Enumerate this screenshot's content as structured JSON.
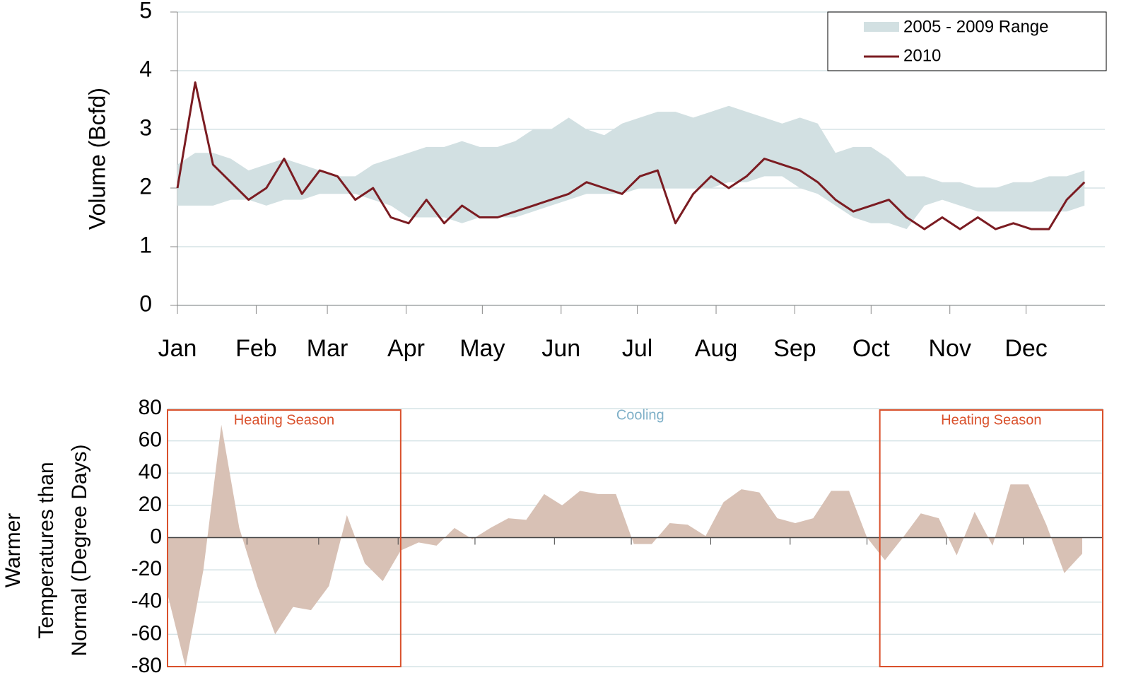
{
  "chart_data": [
    {
      "type": "range-line",
      "ylabel": "Volume (Bcfd)",
      "x": [
        1,
        8,
        15,
        22,
        29,
        36,
        43,
        50,
        57,
        64,
        71,
        78,
        85,
        92,
        99,
        106,
        113,
        120,
        127,
        134,
        141,
        148,
        155,
        162,
        169,
        176,
        183,
        190,
        197,
        204,
        211,
        218,
        225,
        232,
        239,
        246,
        253,
        260,
        267,
        274,
        281,
        288,
        295,
        302,
        309,
        316,
        323,
        330,
        337,
        344,
        351,
        358
      ],
      "xlim": [
        1,
        366
      ],
      "xticks": [
        {
          "value": 1,
          "label": "Jan"
        },
        {
          "value": 32,
          "label": "Feb"
        },
        {
          "value": 60,
          "label": "Mar"
        },
        {
          "value": 91,
          "label": "Apr"
        },
        {
          "value": 121,
          "label": "May"
        },
        {
          "value": 152,
          "label": "Jun"
        },
        {
          "value": 182,
          "label": "Jul"
        },
        {
          "value": 213,
          "label": "Aug"
        },
        {
          "value": 244,
          "label": "Sep"
        },
        {
          "value": 274,
          "label": "Oct"
        },
        {
          "value": 305,
          "label": "Nov"
        },
        {
          "value": 335,
          "label": "Dec"
        }
      ],
      "ylim": [
        0,
        5
      ],
      "yticks": [
        0,
        1,
        2,
        3,
        4,
        5
      ],
      "grid": true,
      "legend": "upper right",
      "series": [
        {
          "name": "2005 - 2009 Range",
          "color": "#d2e0e2",
          "low": [
            1.7,
            1.7,
            1.7,
            1.8,
            1.8,
            1.7,
            1.8,
            1.8,
            1.9,
            1.9,
            1.9,
            1.8,
            1.7,
            1.5,
            1.5,
            1.5,
            1.4,
            1.5,
            1.5,
            1.5,
            1.6,
            1.7,
            1.8,
            1.9,
            1.9,
            1.9,
            2.0,
            2.0,
            2.0,
            2.0,
            2.0,
            2.1,
            2.1,
            2.2,
            2.2,
            2.0,
            1.9,
            1.7,
            1.5,
            1.4,
            1.4,
            1.3,
            1.7,
            1.8,
            1.7,
            1.6,
            1.6,
            1.6,
            1.6,
            1.6,
            1.6,
            1.7
          ],
          "high": [
            2.4,
            2.6,
            2.6,
            2.5,
            2.3,
            2.4,
            2.5,
            2.4,
            2.3,
            2.2,
            2.2,
            2.4,
            2.5,
            2.6,
            2.7,
            2.7,
            2.8,
            2.7,
            2.7,
            2.8,
            3.0,
            3.0,
            3.2,
            3.0,
            2.9,
            3.1,
            3.2,
            3.3,
            3.3,
            3.2,
            3.3,
            3.4,
            3.3,
            3.2,
            3.1,
            3.2,
            3.1,
            2.6,
            2.7,
            2.7,
            2.5,
            2.2,
            2.2,
            2.1,
            2.1,
            2.0,
            2.0,
            2.1,
            2.1,
            2.2,
            2.2,
            2.3
          ]
        },
        {
          "name": "2010",
          "color": "#7b1c22",
          "values": [
            2.0,
            3.8,
            2.4,
            2.1,
            1.8,
            2.0,
            2.5,
            1.9,
            2.3,
            2.2,
            1.8,
            2.0,
            1.5,
            1.4,
            1.8,
            1.4,
            1.7,
            1.5,
            1.5,
            1.6,
            1.7,
            1.8,
            1.9,
            2.1,
            2.0,
            1.9,
            2.2,
            2.3,
            1.4,
            1.9,
            2.2,
            2.0,
            2.2,
            2.5,
            2.4,
            2.3,
            2.1,
            1.8,
            1.6,
            1.7,
            1.8,
            1.5,
            1.3,
            1.5,
            1.3,
            1.5,
            1.3,
            1.4,
            1.3,
            1.3,
            1.8,
            2.1
          ]
        }
      ]
    },
    {
      "type": "area",
      "ylabel": [
        "Warmer",
        "Temperatures than",
        "Normal (Degree Days)"
      ],
      "x": [
        1,
        8,
        15,
        22,
        29,
        36,
        43,
        50,
        57,
        64,
        71,
        78,
        85,
        92,
        99,
        106,
        113,
        120,
        127,
        134,
        141,
        148,
        155,
        162,
        169,
        176,
        183,
        190,
        197,
        204,
        211,
        218,
        225,
        232,
        239,
        246,
        253,
        260,
        267,
        274,
        281,
        288,
        295,
        302,
        309,
        316,
        323,
        330,
        337,
        344,
        351,
        358
      ],
      "xlim": [
        1,
        366
      ],
      "xticks": [
        32,
        60,
        91,
        121,
        152,
        182,
        213,
        244,
        274,
        305,
        335
      ],
      "ylim": [
        -80,
        80
      ],
      "yticks": [
        -80,
        -60,
        -40,
        -20,
        0,
        20,
        40,
        60,
        80
      ],
      "grid": true,
      "color": "#d8c1b5",
      "values": [
        -35,
        -80,
        -20,
        70,
        6,
        -30,
        -60,
        -43,
        -45,
        -30,
        14,
        -16,
        -27,
        -8,
        -3,
        -5,
        6,
        -1,
        6,
        12,
        11,
        27,
        20,
        29,
        27,
        27,
        -4,
        -4,
        9,
        8,
        1,
        22,
        30,
        28,
        12,
        9,
        12,
        29,
        29,
        0,
        -14,
        0,
        15,
        12,
        -11,
        16,
        -5,
        33,
        33,
        8,
        -22,
        -10
      ],
      "annotations": [
        {
          "text": "Heating Season",
          "color": "#d9502b",
          "x": [
            1,
            92
          ]
        },
        {
          "text": "Cooling",
          "color": "#7fb0c8",
          "x": [
            92,
            279
          ]
        },
        {
          "text": "Heating Season",
          "color": "#d9502b",
          "x": [
            279,
            366
          ]
        }
      ]
    }
  ]
}
